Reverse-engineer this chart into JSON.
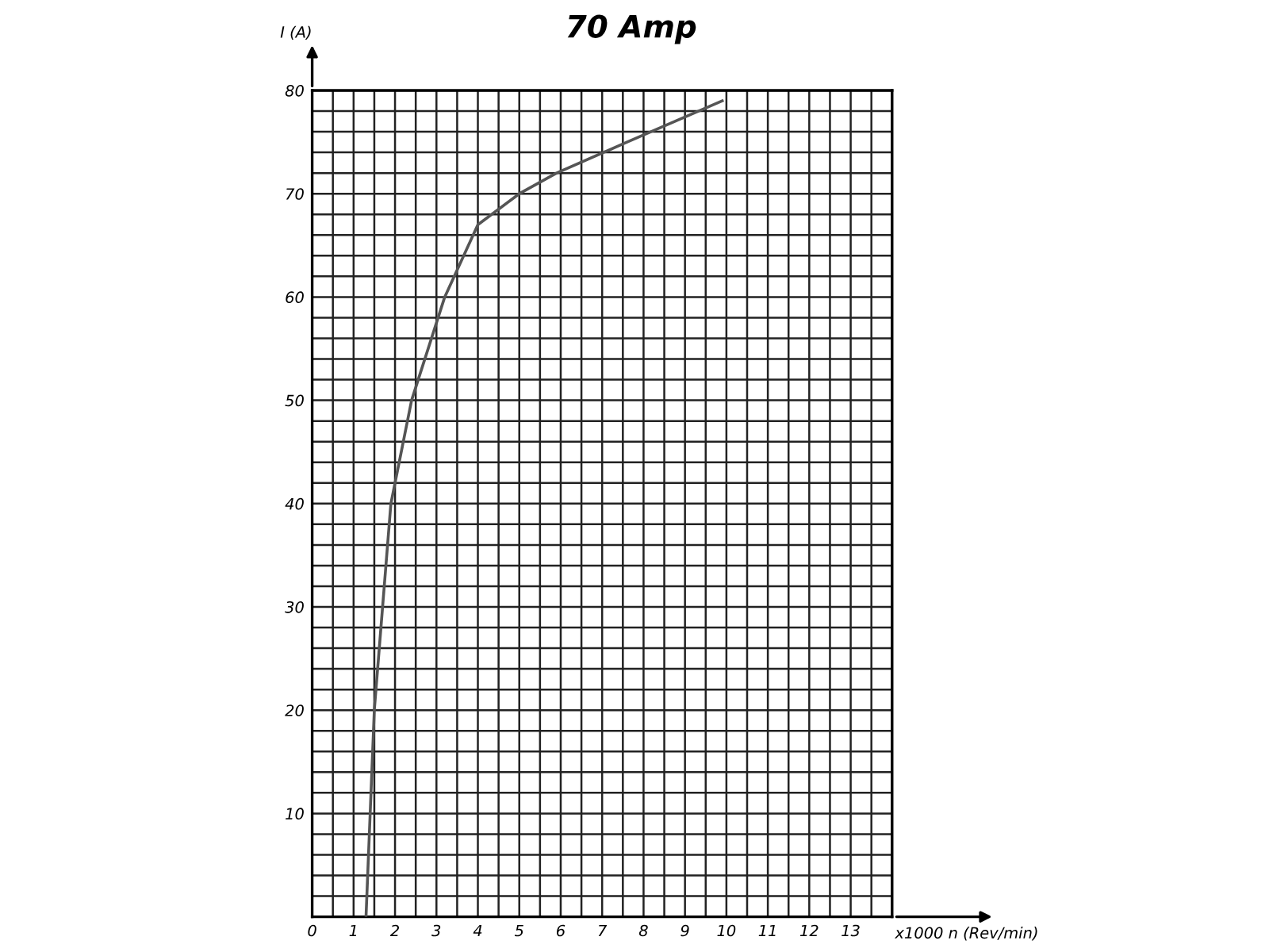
{
  "chart_data": {
    "type": "line",
    "title": "70 Amp",
    "xlabel": "x1000 n (Rev/min)",
    "ylabel": "I (A)",
    "x": [
      1.3,
      1.4,
      1.5,
      1.7,
      1.9,
      2.4,
      3.2,
      4.0,
      5.0,
      5.9,
      7.6,
      9.9
    ],
    "series": [
      {
        "color": "#555555",
        "values": [
          0,
          10,
          20,
          30,
          40,
          50,
          60,
          67,
          70,
          72,
          75,
          79
        ]
      }
    ],
    "xlim": [
      0,
      14
    ],
    "ylim": [
      0,
      80
    ],
    "xticks": [
      0,
      {
        "value": 0.5,
        "label": null
      },
      1,
      {
        "value": 1.5,
        "label": null
      },
      2,
      {
        "value": 2.5,
        "label": null
      },
      3,
      {
        "value": 3.5,
        "label": null
      },
      4,
      {
        "value": 4.5,
        "label": null
      },
      5,
      {
        "value": 5.5,
        "label": null
      },
      6,
      {
        "value": 6.5,
        "label": null
      },
      7,
      {
        "value": 7.5,
        "label": null
      },
      8,
      {
        "value": 8.5,
        "label": null
      },
      9,
      {
        "value": 9.5,
        "label": null
      },
      10,
      {
        "value": 10.5,
        "label": null
      },
      11,
      {
        "value": 11.5,
        "label": null
      },
      12,
      {
        "value": 12.5,
        "label": null
      },
      13,
      {
        "value": 13.5,
        "label": null
      },
      {
        "value": 14,
        "label": null
      }
    ],
    "yticks": [
      {
        "value": 2,
        "label": null
      },
      {
        "value": 4,
        "label": null
      },
      {
        "value": 6,
        "label": null
      },
      {
        "value": 8,
        "label": null
      },
      10,
      {
        "value": 12,
        "label": null
      },
      {
        "value": 14,
        "label": null
      },
      {
        "value": 16,
        "label": null
      },
      {
        "value": 18,
        "label": null
      },
      20,
      {
        "value": 22,
        "label": null
      },
      {
        "value": 24,
        "label": null
      },
      {
        "value": 26,
        "label": null
      },
      {
        "value": 28,
        "label": null
      },
      30,
      {
        "value": 32,
        "label": null
      },
      {
        "value": 34,
        "label": null
      },
      {
        "value": 36,
        "label": null
      },
      {
        "value": 38,
        "label": null
      },
      40,
      {
        "value": 42,
        "label": null
      },
      {
        "value": 44,
        "label": null
      },
      {
        "value": 46,
        "label": null
      },
      {
        "value": 48,
        "label": null
      },
      50,
      {
        "value": 52,
        "label": null
      },
      {
        "value": 54,
        "label": null
      },
      {
        "value": 56,
        "label": null
      },
      {
        "value": 58,
        "label": null
      },
      60,
      {
        "value": 62,
        "label": null
      },
      {
        "value": 64,
        "label": null
      },
      {
        "value": 66,
        "label": null
      },
      {
        "value": 68,
        "label": null
      },
      70,
      {
        "value": 72,
        "label": null
      },
      {
        "value": 74,
        "label": null
      },
      {
        "value": 76,
        "label": null
      },
      {
        "value": 78,
        "label": null
      },
      80
    ],
    "grid": true,
    "line_style": "solid",
    "marker": "none"
  }
}
